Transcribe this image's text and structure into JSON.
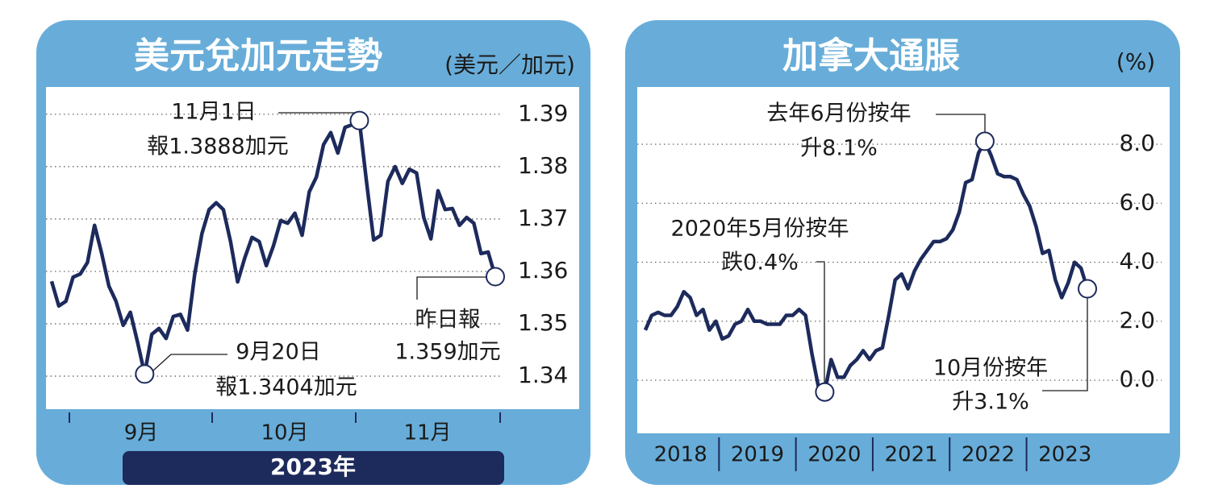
{
  "chart_data": [
    {
      "type": "line",
      "title": "美元兌加元走勢",
      "unit": "(美元／加元)",
      "x_labels": [
        "9月",
        "10月",
        "11月"
      ],
      "period_label": "2023年",
      "ylim": [
        1.3337,
        1.3952
      ],
      "yticks": [
        1.34,
        1.35,
        1.36,
        1.37,
        1.38,
        1.39
      ],
      "grid": true,
      "color": "#1d2a5c",
      "values": [
        1.3581,
        1.3534,
        1.3543,
        1.3589,
        1.3595,
        1.3617,
        1.3688,
        1.3634,
        1.3572,
        1.3543,
        1.3497,
        1.3522,
        1.3465,
        1.3404,
        1.348,
        1.3491,
        1.3472,
        1.3514,
        1.3518,
        1.3488,
        1.3595,
        1.3672,
        1.3718,
        1.3731,
        1.3718,
        1.3657,
        1.358,
        1.3626,
        1.3665,
        1.3657,
        1.3611,
        1.3649,
        1.3697,
        1.3692,
        1.3711,
        1.3669,
        1.3752,
        1.378,
        1.3842,
        1.3865,
        1.3826,
        1.3875,
        1.388,
        1.3888,
        1.3772,
        1.366,
        1.3669,
        1.3772,
        1.38,
        1.3768,
        1.3795,
        1.3788,
        1.3703,
        1.3662,
        1.3754,
        1.3718,
        1.372,
        1.3688,
        1.3703,
        1.3692,
        1.3634,
        1.3637,
        1.359
      ],
      "annotations": [
        [
          "11月1日",
          "報1.3888加元"
        ],
        [
          "9月20日",
          "報1.3404加元"
        ],
        [
          "昨日報",
          "1.359加元"
        ]
      ]
    },
    {
      "type": "line",
      "title": "加拿大通脹",
      "unit": "(%)",
      "x_labels": [
        "2018",
        "2019",
        "2020",
        "2021",
        "2022",
        "2023"
      ],
      "ylim": [
        -1.8,
        9.94
      ],
      "yticks": [
        {
          "value": 0,
          "label": "0.0"
        },
        {
          "value": 2,
          "label": "2.0"
        },
        {
          "value": 4,
          "label": "4.0"
        },
        {
          "value": 6,
          "label": "6.0"
        },
        {
          "value": 8,
          "label": "8.0"
        }
      ],
      "grid": true,
      "color": "#1d2a5c",
      "values": [
        1.7,
        2.2,
        2.3,
        2.2,
        2.2,
        2.5,
        3.0,
        2.8,
        2.2,
        2.4,
        1.7,
        2.0,
        1.4,
        1.5,
        1.9,
        2.0,
        2.4,
        2.0,
        2.0,
        1.9,
        1.9,
        1.9,
        2.2,
        2.2,
        2.4,
        2.2,
        0.9,
        -0.2,
        -0.4,
        0.7,
        0.1,
        0.1,
        0.5,
        0.7,
        1.0,
        0.7,
        1.0,
        1.1,
        2.2,
        3.4,
        3.6,
        3.1,
        3.7,
        4.1,
        4.4,
        4.7,
        4.7,
        4.8,
        5.1,
        5.7,
        6.7,
        6.8,
        7.7,
        8.1,
        7.6,
        7.0,
        6.9,
        6.9,
        6.8,
        6.3,
        5.9,
        5.2,
        4.3,
        4.4,
        3.4,
        2.8,
        3.3,
        4.0,
        3.8,
        3.1
      ],
      "annotations": [
        [
          "去年6月份按年",
          "升8.1%"
        ],
        [
          "2020年5月份按年",
          "跌0.4%"
        ],
        [
          "10月份按年",
          "升3.1%"
        ]
      ]
    }
  ]
}
